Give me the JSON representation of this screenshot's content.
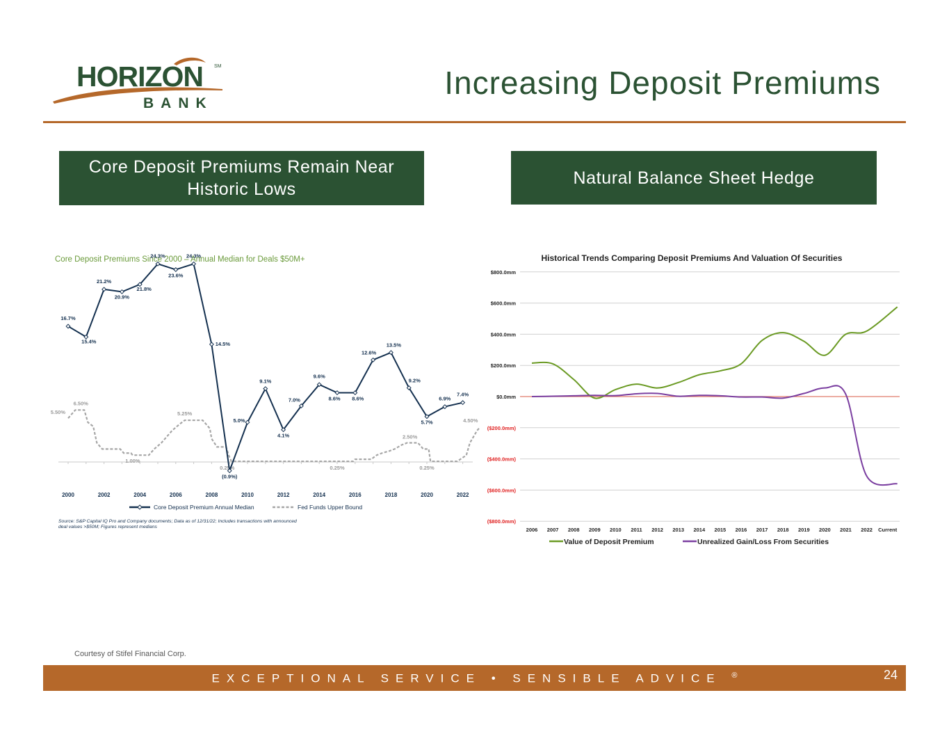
{
  "header": {
    "title": "Increasing Deposit Premiums",
    "logo": {
      "word": "HORIZON",
      "sub": "BANK",
      "mark": "SM",
      "colors": {
        "green": "#2b5233",
        "orange": "#b5682a"
      }
    }
  },
  "left_panel": {
    "header": "Core Deposit Premiums Remain Near Historic Lows"
  },
  "right_panel": {
    "header": "Natural Balance Sheet Hedge"
  },
  "chart_data": [
    {
      "type": "line",
      "title": "Core Deposit Premiums Since 2000 – Annual Median for Deals $50M+",
      "x": [
        2000,
        2001,
        2002,
        2003,
        2004,
        2005,
        2006,
        2007,
        2008,
        2009,
        2010,
        2011,
        2012,
        2013,
        2014,
        2015,
        2016,
        2017,
        2018,
        2019,
        2020,
        2021,
        2022
      ],
      "x_tick_labels": [
        "2000",
        "2002",
        "2004",
        "2006",
        "2008",
        "2010",
        "2012",
        "2014",
        "2016",
        "2018",
        "2020",
        "2022"
      ],
      "series": [
        {
          "name": "Core Deposit Premium Annual Median",
          "color": "#14304f",
          "values": [
            16.7,
            15.4,
            21.2,
            20.9,
            21.8,
            24.3,
            23.6,
            24.3,
            14.5,
            -0.9,
            5.0,
            9.1,
            4.1,
            7.0,
            9.6,
            8.6,
            8.6,
            12.6,
            13.5,
            9.2,
            5.7,
            6.9,
            7.4
          ],
          "labels": [
            "16.7%",
            "15.4%",
            "21.2%",
            "20.9%",
            "21.8%",
            "24.3%",
            "23.6%",
            "24.3%",
            "14.5%",
            "(0.9%)",
            "5.0%",
            "9.1%",
            "4.1%",
            "7.0%",
            "9.6%",
            "8.6%",
            "8.6%",
            "12.6%",
            "13.5%",
            "9.2%",
            "5.7%",
            "6.9%",
            "7.4%"
          ]
        },
        {
          "name": "Fed Funds Upper Bound",
          "color": "#a6a6a6",
          "points": [
            [
              2000,
              5.5
            ],
            [
              2000.4,
              6.5
            ],
            [
              2000.9,
              6.5
            ],
            [
              2001.1,
              5.0
            ],
            [
              2001.4,
              4.5
            ],
            [
              2001.6,
              2.5
            ],
            [
              2001.9,
              1.75
            ],
            [
              2002.9,
              1.75
            ],
            [
              2003.1,
              1.25
            ],
            [
              2003.5,
              1.25
            ],
            [
              2003.6,
              1.0
            ],
            [
              2004.5,
              1.0
            ],
            [
              2004.8,
              1.75
            ],
            [
              2005.2,
              2.5
            ],
            [
              2005.5,
              3.25
            ],
            [
              2005.8,
              4.0
            ],
            [
              2006.2,
              4.75
            ],
            [
              2006.5,
              5.25
            ],
            [
              2007.5,
              5.25
            ],
            [
              2007.7,
              4.75
            ],
            [
              2007.9,
              4.25
            ],
            [
              2008.0,
              3.0
            ],
            [
              2008.3,
              2.0
            ],
            [
              2008.8,
              2.0
            ],
            [
              2008.95,
              1.0
            ],
            [
              2009.1,
              0.25
            ],
            [
              2015.9,
              0.25
            ],
            [
              2016.0,
              0.5
            ],
            [
              2016.9,
              0.5
            ],
            [
              2017.2,
              1.0
            ],
            [
              2017.5,
              1.25
            ],
            [
              2017.9,
              1.5
            ],
            [
              2018.2,
              1.75
            ],
            [
              2018.6,
              2.25
            ],
            [
              2018.9,
              2.5
            ],
            [
              2019.5,
              2.5
            ],
            [
              2019.6,
              2.25
            ],
            [
              2019.8,
              1.75
            ],
            [
              2020.1,
              1.75
            ],
            [
              2020.2,
              0.25
            ],
            [
              2021.7,
              0.25
            ],
            [
              2022.2,
              1.0
            ],
            [
              2022.4,
              2.5
            ],
            [
              2022.6,
              3.25
            ],
            [
              2022.8,
              4.0
            ],
            [
              2023.0,
              4.5
            ]
          ],
          "annotations": [
            {
              "x": 2000,
              "y": 5.5,
              "text": "5.50%"
            },
            {
              "x": 2000.4,
              "y": 6.5,
              "text": "6.50%"
            },
            {
              "x": 2003.6,
              "y": 1.0,
              "text": "1.00%"
            },
            {
              "x": 2006.5,
              "y": 5.25,
              "text": "5.25%"
            },
            {
              "x": 2009.1,
              "y": 0.25,
              "text": "0.25%"
            },
            {
              "x": 2015.0,
              "y": 0.25,
              "text": "0.25%"
            },
            {
              "x": 2018.9,
              "y": 2.5,
              "text": "2.50%"
            },
            {
              "x": 2020.0,
              "y": 0.25,
              "text": "0.25%"
            },
            {
              "x": 2023.0,
              "y": 4.5,
              "text": "4.50%"
            }
          ]
        }
      ],
      "legend": [
        "Core Deposit Premium Annual Median",
        "Fed Funds Upper Bound"
      ],
      "legend_position": "bottom",
      "source_note": "Source: S&P Capital IQ Pro and Company documents; Data as of 12/31/22; Includes transactions with announced deal values >$50M; Figures represent medians"
    },
    {
      "type": "line",
      "title": "Historical Trends Comparing Deposit Premiums And Valuation Of Securities",
      "categories": [
        "2006",
        "2007",
        "2008",
        "2009",
        "2010",
        "2011",
        "2012",
        "2013",
        "2014",
        "2015",
        "2016",
        "2017",
        "2018",
        "2019",
        "2020",
        "2021",
        "2022",
        "Current"
      ],
      "y_tick_labels": [
        "$800.0mm",
        "$600.0mm",
        "$400.0mm",
        "$200.0mm",
        "$0.0mm",
        "($200.0mm)",
        "($400.0mm)",
        "($600.0mm)",
        "($800.0mm)"
      ],
      "ylim": [
        -800,
        800
      ],
      "grid": true,
      "zero_line_color": "#e07b6a",
      "negative_tick_color": "#e02020",
      "series": [
        {
          "name": "Value of Deposit Premium",
          "color": "#6a9a23",
          "values": [
            215,
            210,
            110,
            -10,
            45,
            80,
            55,
            90,
            140,
            165,
            210,
            360,
            410,
            355,
            265,
            400,
            420,
            575
          ]
        },
        {
          "name": "Unrealized Gain/Loss From Securities",
          "color": "#7a3ea0",
          "values": [
            0,
            2,
            5,
            8,
            6,
            18,
            20,
            2,
            8,
            5,
            -3,
            -3,
            -10,
            20,
            55,
            15,
            -510,
            -560
          ]
        }
      ],
      "legend_position": "bottom"
    }
  ],
  "footer": {
    "courtesy": "Courtesy of Stifel Financial Corp.",
    "slogan": "EXCEPTIONAL SERVICE • SENSIBLE ADVICE",
    "registered": "®",
    "page_number": "24"
  }
}
